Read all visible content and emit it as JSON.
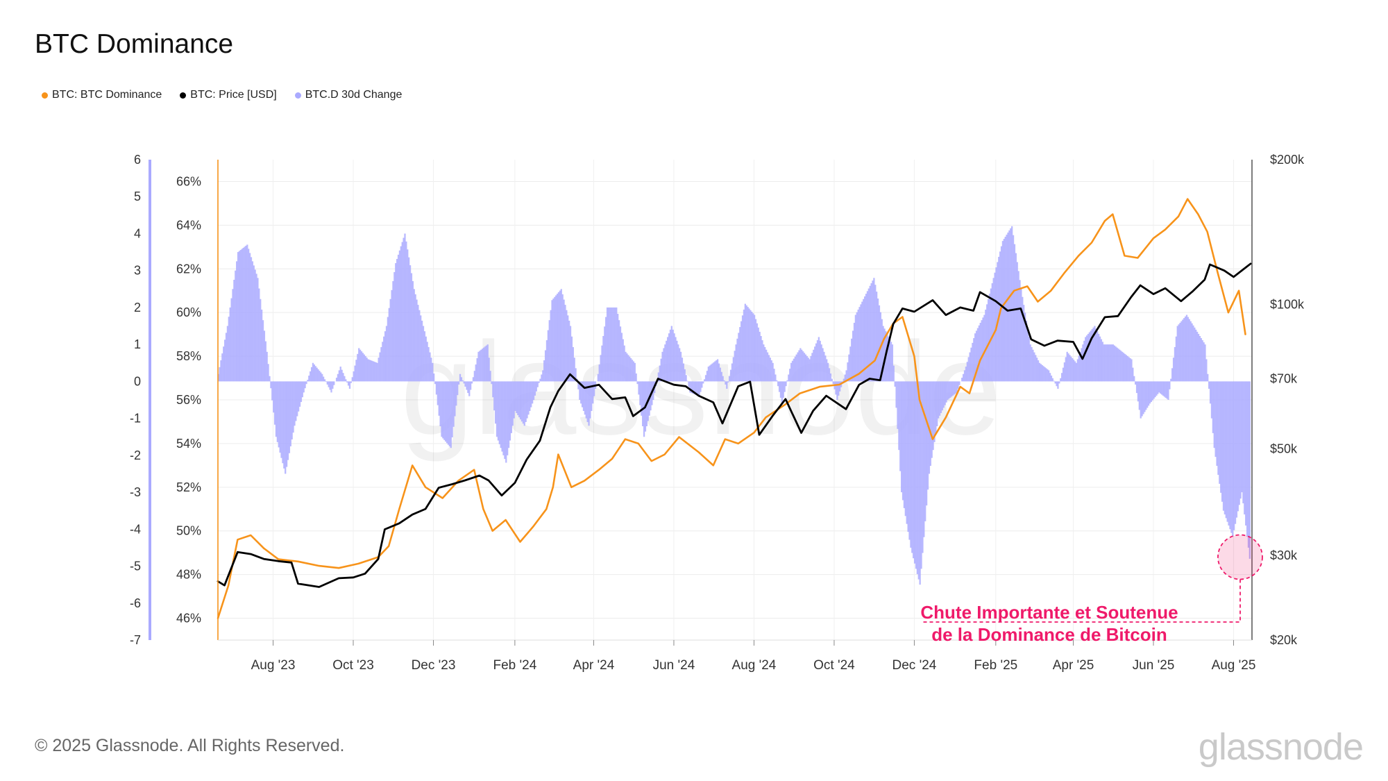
{
  "title": "BTC Dominance",
  "legend": [
    {
      "label": "BTC: BTC Dominance",
      "color": "#f7931a"
    },
    {
      "label": "BTC: Price [USD]",
      "color": "#000000"
    },
    {
      "label": "BTC.D 30d Change",
      "color": "#aaaaff"
    }
  ],
  "footer": "© 2025 Glassnode. All Rights Reserved.",
  "logo": "glassnode",
  "watermark": "glassnode",
  "chart_data": {
    "type": "line",
    "x_start": "2023-06-20",
    "x_end": "2025-08-15",
    "x_ticks": [
      "Aug '23",
      "Oct '23",
      "Dec '23",
      "Feb '24",
      "Apr '24",
      "Jun '24",
      "Aug '24",
      "Oct '24",
      "Dec '24",
      "Feb '25",
      "Apr '25",
      "Jun '25",
      "Aug '25"
    ],
    "x_tick_dates": [
      "2023-08-01",
      "2023-10-01",
      "2023-12-01",
      "2024-02-01",
      "2024-04-01",
      "2024-06-01",
      "2024-08-01",
      "2024-10-01",
      "2024-12-01",
      "2025-02-01",
      "2025-04-01",
      "2025-06-01",
      "2025-08-01"
    ],
    "axes": {
      "change": {
        "range": [
          -7,
          6
        ],
        "ticks": [
          "6",
          "5",
          "4",
          "3",
          "2",
          "1",
          "0",
          "-1",
          "-2",
          "-3",
          "-4",
          "-5",
          "-6",
          "-7"
        ],
        "tick_values": [
          6,
          5,
          4,
          3,
          2,
          1,
          0,
          -1,
          -2,
          -3,
          -4,
          -5,
          -6,
          -7
        ],
        "color": "#aaaaff"
      },
      "dominance": {
        "range": [
          45.0,
          67.0
        ],
        "ticks": [
          "66%",
          "64%",
          "62%",
          "60%",
          "58%",
          "56%",
          "54%",
          "52%",
          "50%",
          "48%",
          "46%"
        ],
        "tick_values": [
          66,
          64,
          62,
          60,
          58,
          56,
          54,
          52,
          50,
          48,
          46
        ],
        "color": "#f7931a"
      },
      "price": {
        "range": [
          20000,
          200000
        ],
        "scale": "log",
        "ticks": [
          "$200k",
          "$100k",
          "$70k",
          "$50k",
          "$30k",
          "$20k"
        ],
        "tick_values": [
          200000,
          100000,
          70000,
          50000,
          30000,
          20000
        ]
      }
    },
    "series": [
      {
        "name": "BTC: BTC Dominance",
        "axis": "dominance",
        "color": "#f7931a",
        "dates": [
          "2023-06-20",
          "2023-06-28",
          "2023-07-05",
          "2023-07-15",
          "2023-07-25",
          "2023-08-05",
          "2023-08-20",
          "2023-09-05",
          "2023-09-20",
          "2023-10-05",
          "2023-10-20",
          "2023-10-28",
          "2023-11-05",
          "2023-11-15",
          "2023-11-25",
          "2023-12-08",
          "2023-12-20",
          "2024-01-01",
          "2024-01-08",
          "2024-01-15",
          "2024-01-25",
          "2024-02-05",
          "2024-02-15",
          "2024-02-25",
          "2024-03-01",
          "2024-03-05",
          "2024-03-15",
          "2024-03-25",
          "2024-04-05",
          "2024-04-15",
          "2024-04-25",
          "2024-05-05",
          "2024-05-15",
          "2024-05-25",
          "2024-06-05",
          "2024-06-20",
          "2024-07-01",
          "2024-07-10",
          "2024-07-20",
          "2024-08-01",
          "2024-08-10",
          "2024-08-25",
          "2024-09-05",
          "2024-09-20",
          "2024-10-05",
          "2024-10-20",
          "2024-11-01",
          "2024-11-08",
          "2024-11-15",
          "2024-11-22",
          "2024-12-01",
          "2024-12-05",
          "2024-12-15",
          "2024-12-25",
          "2025-01-05",
          "2025-01-12",
          "2025-01-20",
          "2025-02-01",
          "2025-02-05",
          "2025-02-15",
          "2025-02-25",
          "2025-03-05",
          "2025-03-15",
          "2025-03-25",
          "2025-04-05",
          "2025-04-15",
          "2025-04-25",
          "2025-05-01",
          "2025-05-10",
          "2025-05-20",
          "2025-06-01",
          "2025-06-10",
          "2025-06-20",
          "2025-06-27",
          "2025-07-05",
          "2025-07-12",
          "2025-07-20",
          "2025-07-28",
          "2025-08-05",
          "2025-08-10"
        ],
        "values": [
          46.0,
          47.5,
          49.6,
          49.8,
          49.2,
          48.7,
          48.6,
          48.4,
          48.3,
          48.5,
          48.8,
          49.3,
          51.0,
          53.0,
          52.0,
          51.5,
          52.3,
          52.8,
          51.0,
          50.0,
          50.5,
          49.5,
          50.2,
          51.0,
          52.0,
          53.5,
          52.0,
          52.3,
          52.8,
          53.3,
          54.2,
          54.0,
          53.2,
          53.5,
          54.3,
          53.6,
          53.0,
          54.2,
          54.0,
          54.5,
          55.2,
          55.8,
          56.3,
          56.6,
          56.7,
          57.2,
          57.8,
          58.8,
          59.5,
          59.8,
          58.0,
          56.0,
          54.2,
          55.2,
          56.6,
          56.3,
          57.8,
          59.2,
          60.2,
          61.0,
          61.2,
          60.5,
          61.0,
          61.8,
          62.6,
          63.2,
          64.2,
          64.5,
          62.6,
          62.5,
          63.4,
          63.8,
          64.4,
          65.2,
          64.5,
          63.7,
          61.8,
          60.0,
          61.0,
          59.0
        ]
      },
      {
        "name": "BTC: Price [USD]",
        "axis": "price",
        "color": "#000000",
        "dates": [
          "2023-06-20",
          "2023-06-25",
          "2023-07-05",
          "2023-07-15",
          "2023-07-25",
          "2023-08-05",
          "2023-08-15",
          "2023-08-20",
          "2023-09-05",
          "2023-09-20",
          "2023-10-01",
          "2023-10-10",
          "2023-10-20",
          "2023-10-25",
          "2023-11-05",
          "2023-11-15",
          "2023-11-25",
          "2023-12-05",
          "2023-12-15",
          "2023-12-25",
          "2024-01-05",
          "2024-01-12",
          "2024-01-22",
          "2024-02-01",
          "2024-02-10",
          "2024-02-20",
          "2024-02-28",
          "2024-03-05",
          "2024-03-14",
          "2024-03-25",
          "2024-04-05",
          "2024-04-15",
          "2024-04-25",
          "2024-05-01",
          "2024-05-10",
          "2024-05-20",
          "2024-06-01",
          "2024-06-10",
          "2024-06-20",
          "2024-07-01",
          "2024-07-08",
          "2024-07-20",
          "2024-07-29",
          "2024-08-05",
          "2024-08-15",
          "2024-08-25",
          "2024-09-06",
          "2024-09-15",
          "2024-09-25",
          "2024-10-10",
          "2024-10-20",
          "2024-10-28",
          "2024-11-05",
          "2024-11-10",
          "2024-11-15",
          "2024-11-22",
          "2024-12-01",
          "2024-12-15",
          "2024-12-25",
          "2025-01-05",
          "2025-01-15",
          "2025-01-20",
          "2025-02-01",
          "2025-02-10",
          "2025-02-20",
          "2025-02-28",
          "2025-03-10",
          "2025-03-20",
          "2025-04-01",
          "2025-04-08",
          "2025-04-15",
          "2025-04-25",
          "2025-05-05",
          "2025-05-15",
          "2025-05-22",
          "2025-06-01",
          "2025-06-10",
          "2025-06-22",
          "2025-07-01",
          "2025-07-10",
          "2025-07-14",
          "2025-07-25",
          "2025-08-01",
          "2025-08-08",
          "2025-08-14"
        ],
        "values": [
          26500,
          26000,
          30500,
          30200,
          29500,
          29200,
          29000,
          26200,
          25800,
          26900,
          27000,
          27500,
          29500,
          34000,
          35000,
          36500,
          37500,
          41500,
          42200,
          43000,
          44000,
          43000,
          40000,
          42500,
          47500,
          52000,
          61000,
          66000,
          71500,
          67000,
          68000,
          63500,
          64000,
          58500,
          61000,
          70000,
          68000,
          67500,
          64500,
          62500,
          56500,
          67500,
          69000,
          53500,
          58500,
          63500,
          54000,
          60000,
          64500,
          60500,
          68000,
          70000,
          69500,
          80000,
          91000,
          98000,
          96500,
          102000,
          95000,
          98500,
          97000,
          106000,
          101500,
          97000,
          98000,
          84500,
          82000,
          84000,
          83500,
          77000,
          85000,
          94000,
          94500,
          103500,
          109500,
          105000,
          108000,
          101500,
          106500,
          112500,
          121000,
          117500,
          114000,
          118000,
          121500
        ]
      },
      {
        "name": "BTC.D 30d Change",
        "axis": "change",
        "color": "#aaaaff",
        "type": "bar",
        "dates": [
          "2023-06-20",
          "2023-06-27",
          "2023-07-05",
          "2023-07-12",
          "2023-07-20",
          "2023-07-27",
          "2023-08-03",
          "2023-08-10",
          "2023-08-17",
          "2023-08-24",
          "2023-08-31",
          "2023-09-07",
          "2023-09-14",
          "2023-09-21",
          "2023-09-28",
          "2023-10-05",
          "2023-10-12",
          "2023-10-19",
          "2023-10-26",
          "2023-11-02",
          "2023-11-09",
          "2023-11-16",
          "2023-11-23",
          "2023-11-30",
          "2023-12-07",
          "2023-12-14",
          "2023-12-21",
          "2023-12-28",
          "2024-01-04",
          "2024-01-11",
          "2024-01-18",
          "2024-01-25",
          "2024-02-01",
          "2024-02-08",
          "2024-02-15",
          "2024-02-22",
          "2024-02-29",
          "2024-03-07",
          "2024-03-14",
          "2024-03-21",
          "2024-03-28",
          "2024-04-04",
          "2024-04-11",
          "2024-04-18",
          "2024-04-25",
          "2024-05-02",
          "2024-05-09",
          "2024-05-16",
          "2024-05-23",
          "2024-05-30",
          "2024-06-06",
          "2024-06-13",
          "2024-06-20",
          "2024-06-27",
          "2024-07-04",
          "2024-07-11",
          "2024-07-18",
          "2024-07-25",
          "2024-08-01",
          "2024-08-08",
          "2024-08-15",
          "2024-08-22",
          "2024-08-29",
          "2024-09-05",
          "2024-09-12",
          "2024-09-19",
          "2024-09-26",
          "2024-10-03",
          "2024-10-10",
          "2024-10-17",
          "2024-10-24",
          "2024-10-31",
          "2024-11-07",
          "2024-11-14",
          "2024-11-21",
          "2024-11-28",
          "2024-12-05",
          "2024-12-12",
          "2024-12-19",
          "2024-12-26",
          "2025-01-02",
          "2025-01-09",
          "2025-01-16",
          "2025-01-23",
          "2025-01-30",
          "2025-02-06",
          "2025-02-13",
          "2025-02-20",
          "2025-02-27",
          "2025-03-06",
          "2025-03-13",
          "2025-03-20",
          "2025-03-27",
          "2025-04-03",
          "2025-04-10",
          "2025-04-17",
          "2025-04-24",
          "2025-05-01",
          "2025-05-08",
          "2025-05-15",
          "2025-05-22",
          "2025-05-29",
          "2025-06-05",
          "2025-06-12",
          "2025-06-19",
          "2025-06-26",
          "2025-07-03",
          "2025-07-10",
          "2025-07-17",
          "2025-07-24",
          "2025-07-31",
          "2025-08-07",
          "2025-08-13"
        ],
        "values": [
          0.2,
          1.5,
          3.5,
          3.7,
          2.8,
          0.8,
          -1.5,
          -2.5,
          -1.2,
          -0.3,
          0.5,
          0.2,
          -0.3,
          0.4,
          -0.2,
          0.9,
          0.6,
          0.5,
          1.5,
          3.2,
          4.0,
          2.5,
          1.5,
          0.5,
          -1.5,
          -1.8,
          0.2,
          -0.4,
          0.8,
          1.0,
          -1.5,
          -2.2,
          -0.8,
          -1.2,
          -0.5,
          0.3,
          2.2,
          2.5,
          1.5,
          -0.5,
          -1.2,
          0.2,
          2.0,
          2.0,
          0.8,
          0.5,
          -1.5,
          -0.5,
          0.8,
          1.5,
          0.8,
          -0.3,
          -0.4,
          0.4,
          0.6,
          -0.2,
          1.0,
          2.1,
          1.8,
          1.0,
          0.5,
          -0.6,
          0.5,
          0.9,
          0.6,
          1.2,
          0.5,
          -0.5,
          0.3,
          1.8,
          2.3,
          2.8,
          1.5,
          1.0,
          -3.0,
          -4.5,
          -5.5,
          -2.5,
          -1.0,
          -0.5,
          -0.3,
          0.4,
          1.3,
          1.8,
          2.8,
          3.8,
          4.2,
          2.5,
          1.0,
          0.5,
          0.3,
          -0.2,
          0.8,
          0.5,
          1.2,
          1.5,
          1.0,
          1.0,
          0.8,
          0.6,
          -1.0,
          -0.6,
          -0.3,
          -0.5,
          1.5,
          1.8,
          1.4,
          1.0,
          -1.8,
          -3.5,
          -4.2,
          -3.0,
          -4.8
        ]
      }
    ],
    "annotation": {
      "text": [
        "Chute Importante et Soutenue",
        "de la Dominance de Bitcoin"
      ],
      "date": "2025-08-06",
      "dominance": 48.8,
      "color": "#ef1a6a"
    }
  }
}
